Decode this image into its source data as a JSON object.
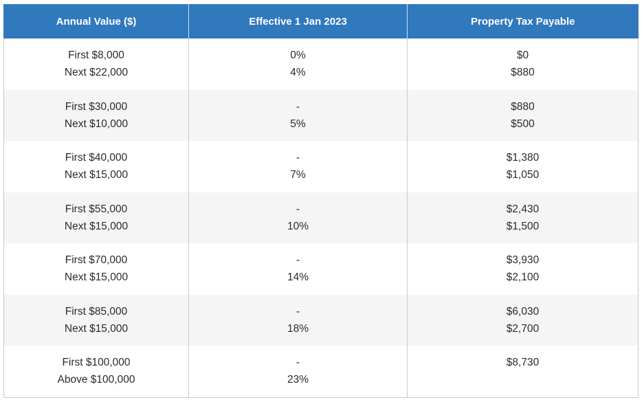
{
  "table": {
    "headers": [
      "Annual Value ($)",
      "Effective 1 Jan 2023",
      "Property Tax Payable"
    ],
    "rows": [
      {
        "annual_value": [
          "First $8,000",
          "Next $22,000"
        ],
        "rate": [
          "0%",
          "4%"
        ],
        "tax": [
          "$0",
          "$880"
        ]
      },
      {
        "annual_value": [
          "First $30,000",
          "Next $10,000"
        ],
        "rate": [
          "-",
          "5%"
        ],
        "tax": [
          "$880",
          "$500"
        ]
      },
      {
        "annual_value": [
          "First $40,000",
          "Next $15,000"
        ],
        "rate": [
          "-",
          "7%"
        ],
        "tax": [
          "$1,380",
          "$1,050"
        ]
      },
      {
        "annual_value": [
          "First $55,000",
          "Next $15,000"
        ],
        "rate": [
          "-",
          "10%"
        ],
        "tax": [
          "$2,430",
          "$1,500"
        ]
      },
      {
        "annual_value": [
          "First $70,000",
          "Next $15,000"
        ],
        "rate": [
          "-",
          "14%"
        ],
        "tax": [
          "$3,930",
          "$2,100"
        ]
      },
      {
        "annual_value": [
          "First $85,000",
          "Next $15,000"
        ],
        "rate": [
          "-",
          "18%"
        ],
        "tax": [
          "$6,030",
          "$2,700"
        ]
      },
      {
        "annual_value": [
          "First $100,000",
          "Above $100,000"
        ],
        "rate": [
          "-",
          "23%"
        ],
        "tax": [
          "$8,730",
          ""
        ]
      }
    ]
  },
  "colors": {
    "header_bg": "#3079bd",
    "header_text": "#ffffff",
    "stripe_bg": "#f5f5f5",
    "border": "#c9c9c9"
  }
}
